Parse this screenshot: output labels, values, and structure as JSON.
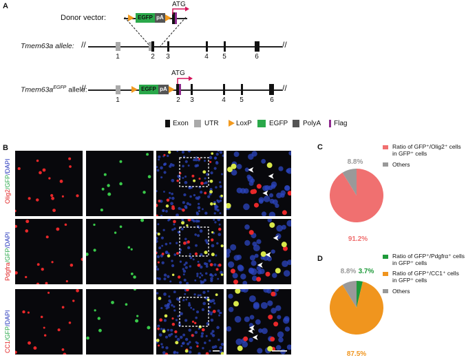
{
  "panelA": {
    "label": "A",
    "donor_label": "Donor vector:",
    "atg": "ATG",
    "egfp_text": "EGFP",
    "pa_text": "pA",
    "wt_allele": "Tmem63a allele:",
    "wt_exon_numbers": [
      "1",
      "2",
      "3",
      "4",
      "5",
      "6"
    ],
    "ko_allele_base": "Tmem63a",
    "ko_allele_sup": "EGFP",
    "ko_allele_suffix": " allele:",
    "ko_exon_numbers": [
      "1",
      "2",
      "3",
      "4",
      "5",
      "6"
    ],
    "legend": [
      "Exon",
      "UTR",
      "LoxP",
      "EGFP",
      "PolyA",
      "Flag"
    ],
    "colors": {
      "exon": "#111111",
      "utr": "#aaaaaa",
      "loxp": "#f29a1f",
      "egfp": "#2aa84a",
      "polya": "#555555",
      "flag": "#8e2a8e",
      "atg_arrow": "#d4145a"
    }
  },
  "panelB": {
    "label": "B",
    "rows": [
      {
        "marker": "Olig2",
        "gfp": "/GFP",
        "dapi": "/DAPI"
      },
      {
        "marker": "Pdgfra",
        "gfp": "/GFP",
        "dapi": "/DAPI"
      },
      {
        "marker": "CC1",
        "gfp": "/GFP",
        "dapi": "/DAPI"
      }
    ]
  },
  "panelC": {
    "label": "C",
    "chart_data": {
      "type": "pie",
      "slices": [
        {
          "label": "Ratio of GFP⁺/Olig2⁺ cells in GFP⁺ cells",
          "value": 91.2,
          "color": "#f07070",
          "display": "91.2%"
        },
        {
          "label": "Others",
          "value": 8.8,
          "color": "#999999",
          "display": "8.8%"
        }
      ]
    },
    "legend": [
      {
        "line1": "Ratio of GFP⁺/Olig2⁺ cells",
        "line2": "in GFP⁺ cells",
        "color": "#f07070"
      },
      {
        "line1": "Others",
        "line2": "",
        "color": "#999999"
      }
    ]
  },
  "panelD": {
    "label": "D",
    "chart_data": {
      "type": "pie",
      "slices": [
        {
          "label": "Ratio of GFP⁺/Pdgfrα⁺ cells in GFP⁺ cells",
          "value": 3.7,
          "color": "#1e9a3a",
          "display": "3.7%"
        },
        {
          "label": "Ratio of GFP⁺/CC1⁺ cells in GFP⁺ cells",
          "value": 87.5,
          "color": "#f0951e",
          "display": "87.5%"
        },
        {
          "label": "Others",
          "value": 8.8,
          "color": "#999999",
          "display": "8.8%"
        }
      ]
    },
    "legend": [
      {
        "line1": "Ratio of GFP⁺/Pdgfrα⁺ cells",
        "line2": "in GFP⁺ cells",
        "color": "#1e9a3a"
      },
      {
        "line1": "Ratio of GFP⁺/CC1⁺ cells",
        "line2": "in GFP⁺ cells",
        "color": "#f0951e"
      },
      {
        "line1": "Others",
        "line2": "",
        "color": "#999999"
      }
    ]
  }
}
